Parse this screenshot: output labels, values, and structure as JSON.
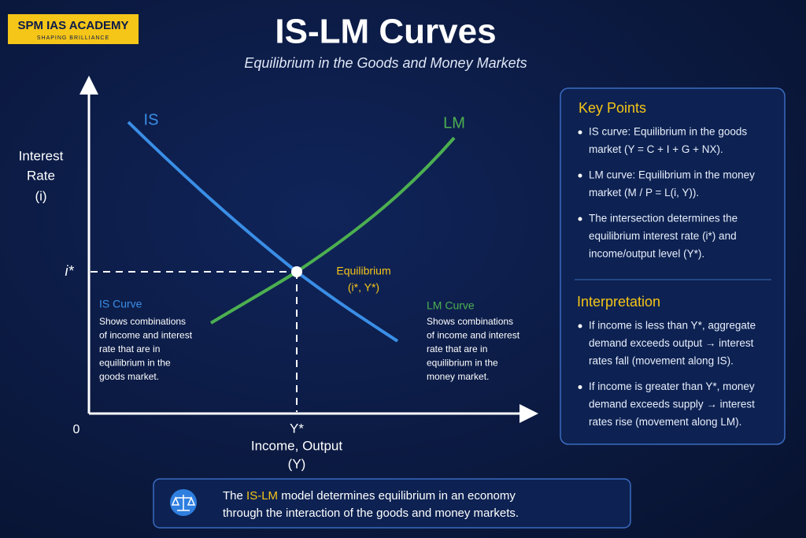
{
  "logo": {
    "name": "SPM IAS ACADEMY",
    "tagline": "SHAPING BRILLIANCE"
  },
  "header": {
    "title": "IS-LM Curves",
    "subtitle": "Equilibrium in the Goods and Money Markets"
  },
  "diagram": {
    "y_axis_label": [
      "Interest",
      "Rate",
      "(i)"
    ],
    "x_axis_label": [
      "Income, Output",
      "(Y)"
    ],
    "origin": "0",
    "i_star": "i*",
    "y_star": "Y*",
    "is_label": "IS",
    "lm_label": "LM",
    "equilibrium": [
      "Equilibrium",
      "(i*, Y*)"
    ],
    "is_note": {
      "title": "IS Curve",
      "lines": [
        "Shows combinations",
        "of income and interest",
        "rate that are in",
        "equilibrium in the",
        "goods market."
      ]
    },
    "lm_note": {
      "title": "LM Curve",
      "lines": [
        "Shows combinations",
        "of income and interest",
        "rate that are in",
        "equilibrium in the",
        "money market."
      ]
    }
  },
  "panel": {
    "key_points": {
      "heading": "Key Points",
      "items": [
        [
          "IS curve: Equilibrium in the goods",
          "market (Y = C + I + G + NX)."
        ],
        [
          "LM curve: Equilibrium in the money",
          "market (M / P = L(i, Y))."
        ],
        [
          "The intersection determines the",
          "equilibrium interest rate (i*) and",
          "income/output level (Y*)."
        ]
      ]
    },
    "interpretation": {
      "heading": "Interpretation",
      "items": [
        [
          "If income is less than Y*, aggregate",
          "demand exceeds output → interest",
          "rates fall (movement along IS)."
        ],
        [
          "If income is greater than Y*, money",
          "demand exceeds supply → interest",
          "rates rise (movement along LM)."
        ]
      ]
    }
  },
  "footer": {
    "line1": {
      "before": "The",
      "highlight": "IS-LM",
      "after": "model determines equilibrium in an economy"
    },
    "line2": "through the interaction of the goods and money markets."
  }
}
